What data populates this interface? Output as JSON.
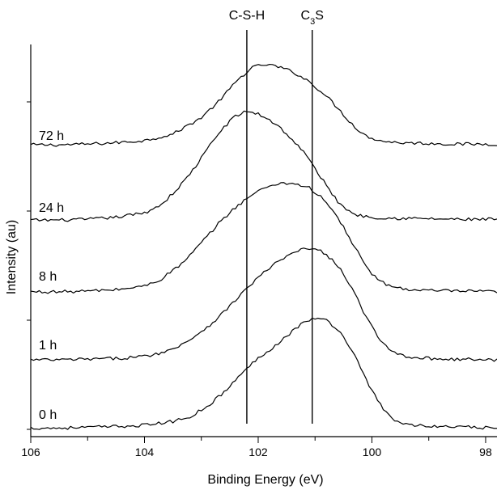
{
  "chart_data": {
    "type": "line",
    "title": "",
    "xlabel": "Binding Energy (eV)",
    "ylabel": "Intensity (au)",
    "x_axis": {
      "reversed": true,
      "xlim": [
        106,
        97.8
      ],
      "ticks": [
        106,
        104,
        102,
        100,
        98
      ],
      "tick_labels": [
        "106",
        "104",
        "102",
        "100",
        "98"
      ]
    },
    "grid": false,
    "legend": "none",
    "y_ticks_labeled": false,
    "reference_lines": [
      {
        "label": "C-S-H",
        "x": 102.2
      },
      {
        "label": "C3S",
        "x": 101.05
      }
    ],
    "series": [
      {
        "name": "72 h",
        "baseline": 3.95,
        "curve": [
          [
            106,
            0
          ],
          [
            105.5,
            0
          ],
          [
            105,
            0.01
          ],
          [
            104.5,
            0.03
          ],
          [
            104,
            0.06
          ],
          [
            103.5,
            0.15
          ],
          [
            103,
            0.38
          ],
          [
            102.7,
            0.6
          ],
          [
            102.5,
            0.78
          ],
          [
            102.3,
            0.95
          ],
          [
            102.1,
            1.08
          ],
          [
            101.9,
            1.12
          ],
          [
            101.7,
            1.1
          ],
          [
            101.5,
            1.05
          ],
          [
            101.3,
            0.98
          ],
          [
            101.1,
            0.88
          ],
          [
            100.9,
            0.75
          ],
          [
            100.7,
            0.6
          ],
          [
            100.5,
            0.42
          ],
          [
            100.3,
            0.25
          ],
          [
            100.1,
            0.12
          ],
          [
            99.8,
            0.05
          ],
          [
            99.5,
            0.03
          ],
          [
            99,
            0.02
          ],
          [
            98.5,
            0.01
          ],
          [
            97.8,
            0.01
          ]
        ]
      },
      {
        "name": "24 h",
        "baseline": 2.9,
        "curve": [
          [
            106,
            0
          ],
          [
            105.5,
            0
          ],
          [
            105,
            0.01
          ],
          [
            104.5,
            0.04
          ],
          [
            104,
            0.1
          ],
          [
            103.7,
            0.22
          ],
          [
            103.4,
            0.45
          ],
          [
            103.1,
            0.75
          ],
          [
            102.8,
            1.1
          ],
          [
            102.6,
            1.3
          ],
          [
            102.4,
            1.45
          ],
          [
            102.2,
            1.52
          ],
          [
            102,
            1.48
          ],
          [
            101.8,
            1.4
          ],
          [
            101.6,
            1.28
          ],
          [
            101.4,
            1.12
          ],
          [
            101.2,
            0.95
          ],
          [
            101,
            0.72
          ],
          [
            100.8,
            0.48
          ],
          [
            100.6,
            0.26
          ],
          [
            100.4,
            0.12
          ],
          [
            100.2,
            0.06
          ],
          [
            99.8,
            0.03
          ],
          [
            99,
            0.02
          ],
          [
            98.5,
            0.01
          ],
          [
            97.8,
            0.01
          ]
        ]
      },
      {
        "name": "8 h",
        "baseline": 1.9,
        "curve": [
          [
            106,
            0
          ],
          [
            105.5,
            0
          ],
          [
            105,
            0.01
          ],
          [
            104.5,
            0.03
          ],
          [
            104,
            0.08
          ],
          [
            103.7,
            0.18
          ],
          [
            103.3,
            0.42
          ],
          [
            103,
            0.68
          ],
          [
            102.7,
            0.95
          ],
          [
            102.4,
            1.18
          ],
          [
            102.1,
            1.36
          ],
          [
            101.8,
            1.48
          ],
          [
            101.6,
            1.52
          ],
          [
            101.3,
            1.5
          ],
          [
            101.1,
            1.45
          ],
          [
            100.9,
            1.32
          ],
          [
            100.7,
            1.15
          ],
          [
            100.5,
            0.9
          ],
          [
            100.3,
            0.62
          ],
          [
            100.1,
            0.35
          ],
          [
            99.9,
            0.16
          ],
          [
            99.6,
            0.06
          ],
          [
            99.2,
            0.02
          ],
          [
            98.5,
            0.01
          ],
          [
            97.8,
            0
          ]
        ]
      },
      {
        "name": "1 h",
        "baseline": 0.95,
        "curve": [
          [
            106,
            0
          ],
          [
            105.5,
            0
          ],
          [
            105,
            0.01
          ],
          [
            104.5,
            0.02
          ],
          [
            104,
            0.05
          ],
          [
            103.6,
            0.12
          ],
          [
            103.2,
            0.28
          ],
          [
            102.8,
            0.52
          ],
          [
            102.5,
            0.75
          ],
          [
            102.2,
            1.0
          ],
          [
            101.9,
            1.22
          ],
          [
            101.6,
            1.4
          ],
          [
            101.3,
            1.52
          ],
          [
            101.1,
            1.56
          ],
          [
            100.9,
            1.52
          ],
          [
            100.7,
            1.4
          ],
          [
            100.5,
            1.2
          ],
          [
            100.3,
            0.92
          ],
          [
            100.1,
            0.6
          ],
          [
            99.9,
            0.32
          ],
          [
            99.7,
            0.14
          ],
          [
            99.4,
            0.05
          ],
          [
            99,
            0.02
          ],
          [
            98.5,
            0.01
          ],
          [
            97.8,
            0
          ]
        ]
      },
      {
        "name": "0 h",
        "baseline": 0,
        "curve": [
          [
            106,
            0
          ],
          [
            105.5,
            0
          ],
          [
            105,
            0.01
          ],
          [
            104.5,
            0.02
          ],
          [
            104,
            0.04
          ],
          [
            103.5,
            0.09
          ],
          [
            103.2,
            0.16
          ],
          [
            102.9,
            0.3
          ],
          [
            102.6,
            0.5
          ],
          [
            102.3,
            0.75
          ],
          [
            102,
            0.98
          ],
          [
            101.7,
            1.15
          ],
          [
            101.4,
            1.35
          ],
          [
            101.2,
            1.48
          ],
          [
            101,
            1.53
          ],
          [
            100.8,
            1.5
          ],
          [
            100.6,
            1.38
          ],
          [
            100.4,
            1.15
          ],
          [
            100.2,
            0.85
          ],
          [
            100,
            0.52
          ],
          [
            99.8,
            0.26
          ],
          [
            99.6,
            0.1
          ],
          [
            99.3,
            0.04
          ],
          [
            98.8,
            0.02
          ],
          [
            98.3,
            0.01
          ],
          [
            97.8,
            0
          ]
        ]
      }
    ]
  }
}
